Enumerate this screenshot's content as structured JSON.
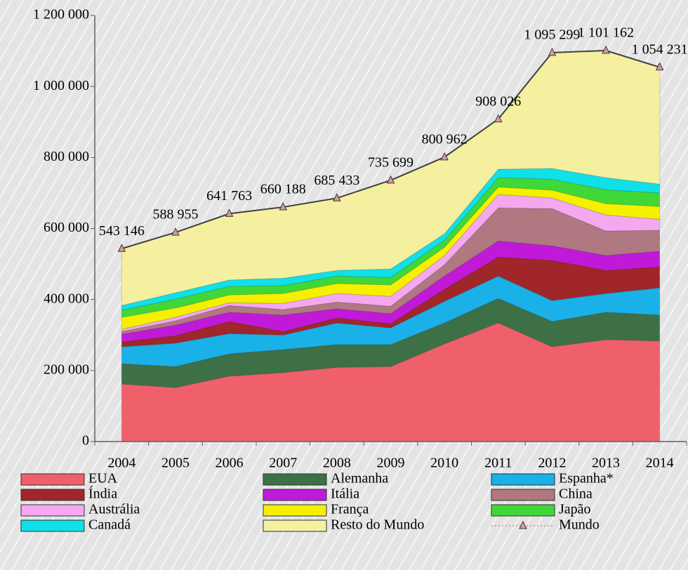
{
  "chart_data": {
    "type": "area",
    "stacked": true,
    "categories": [
      "2004",
      "2005",
      "2006",
      "2007",
      "2008",
      "2009",
      "2010",
      "2011",
      "2012",
      "2013",
      "2014"
    ],
    "ylim": [
      0,
      1200000
    ],
    "yticks": [
      0,
      {
        "value": 200000,
        "label": "200 000"
      },
      {
        "value": 400000,
        "label": "400 000"
      },
      {
        "value": 600000,
        "label": "600 000"
      },
      {
        "value": 800000,
        "label": "800 000"
      },
      {
        "value": 1000000,
        "label": "1 000 000"
      },
      {
        "value": 1200000,
        "label": "1 200 000"
      }
    ],
    "grid": false,
    "series": [
      {
        "name": "EUA",
        "color": "#f0606a",
        "values": [
          162000,
          152000,
          184000,
          194000,
          209000,
          211000,
          275000,
          334000,
          267000,
          287000,
          283000
        ]
      },
      {
        "name": "Alemanha",
        "color": "#3e7048",
        "values": [
          57000,
          59000,
          63000,
          65000,
          64000,
          62000,
          59000,
          69000,
          71000,
          77000,
          73000
        ]
      },
      {
        "name": "Espanha*",
        "color": "#1ab0e8",
        "values": [
          48000,
          66000,
          57000,
          41000,
          61000,
          47000,
          61000,
          63000,
          59000,
          53000,
          77000
        ]
      },
      {
        "name": "Índia",
        "color": "#a0262a",
        "values": [
          14000,
          21000,
          34000,
          10000,
          14000,
          12000,
          34000,
          54000,
          113000,
          65000,
          59000
        ]
      },
      {
        "name": "Itália",
        "color": "#c01ad8",
        "values": [
          21000,
          30000,
          26000,
          46000,
          26000,
          28000,
          37000,
          45000,
          41000,
          42000,
          44000
        ]
      },
      {
        "name": "China",
        "color": "#b07880",
        "values": [
          8000,
          12000,
          19000,
          16000,
          19000,
          21000,
          32000,
          93000,
          105000,
          69000,
          59000
        ]
      },
      {
        "name": "Austrália",
        "color": "#f4a8f0",
        "values": [
          6000,
          10000,
          8000,
          17000,
          24000,
          28000,
          26000,
          38000,
          30000,
          45000,
          31000
        ]
      },
      {
        "name": "França",
        "color": "#f4f000",
        "values": [
          34000,
          26000,
          22000,
          28000,
          28000,
          32000,
          23000,
          21000,
          22000,
          32000,
          36000
        ]
      },
      {
        "name": "Japão",
        "color": "#40d838",
        "values": [
          20000,
          25000,
          24000,
          22000,
          21000,
          21000,
          20000,
          26000,
          31000,
          39000,
          38000
        ]
      },
      {
        "name": "Canadá",
        "color": "#10e0e8",
        "values": [
          13000,
          18000,
          18000,
          21000,
          16000,
          24000,
          18000,
          24000,
          30000,
          34000,
          25000
        ]
      },
      {
        "name": "Resto do Mundo",
        "color": "#f4f0a0",
        "values": [
          160000,
          170000,
          187000,
          200000,
          203000,
          250000,
          216000,
          141000,
          326000,
          358000,
          329000
        ]
      },
      {
        "name": "Mundo",
        "type": "line",
        "color": "#404040",
        "values": [
          543146,
          588955,
          641763,
          660188,
          685433,
          735699,
          800962,
          908026,
          1095299,
          1101162,
          1054231
        ],
        "value_labels": [
          "543 146",
          "588 955",
          "641 763",
          "660 188",
          "685 433",
          "735 699",
          "800 962",
          "908 026",
          "1 095 299",
          "1 101 162",
          "1 054 231"
        ]
      }
    ]
  }
}
